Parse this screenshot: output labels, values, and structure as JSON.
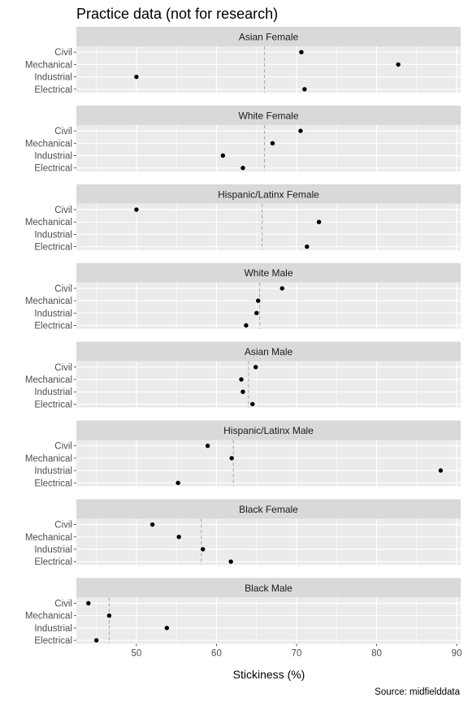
{
  "chart_data": {
    "type": "scatter",
    "title": "Practice data (not for research)",
    "xlabel": "Stickiness (%)",
    "ylabel": "",
    "caption": "Source: midfielddata",
    "xlim": [
      42.5,
      90.5
    ],
    "xticks": [
      50,
      60,
      70,
      80,
      90
    ],
    "categories": [
      "Civil",
      "Mechanical",
      "Industrial",
      "Electrical"
    ],
    "colors": {
      "panel": "#ebebeb",
      "strip": "#d9d9d9",
      "grid": "#ffffff",
      "point": "#000000",
      "reference_line": "#a6a6a6"
    },
    "panels": [
      {
        "name": "Asian Female",
        "reference": 66.0,
        "values": [
          70.6,
          82.7,
          50.0,
          71.0
        ]
      },
      {
        "name": "White Female",
        "reference": 66.0,
        "values": [
          70.5,
          67.0,
          60.8,
          63.3
        ]
      },
      {
        "name": "Hispanic/Latinx Female",
        "reference": 65.7,
        "values": [
          50.0,
          72.8,
          null,
          71.3
        ]
      },
      {
        "name": "White Male",
        "reference": 65.4,
        "values": [
          68.2,
          65.2,
          65.0,
          63.7
        ]
      },
      {
        "name": "Asian Male",
        "reference": 64.0,
        "values": [
          64.9,
          63.1,
          63.3,
          64.5
        ]
      },
      {
        "name": "Hispanic/Latinx Male",
        "reference": 62.1,
        "values": [
          58.9,
          61.9,
          88.0,
          55.2
        ]
      },
      {
        "name": "Black Female",
        "reference": 58.1,
        "values": [
          52.0,
          55.3,
          58.3,
          61.8
        ]
      },
      {
        "name": "Black Male",
        "reference": 46.6,
        "values": [
          44.0,
          46.6,
          53.8,
          45.0
        ]
      }
    ]
  }
}
